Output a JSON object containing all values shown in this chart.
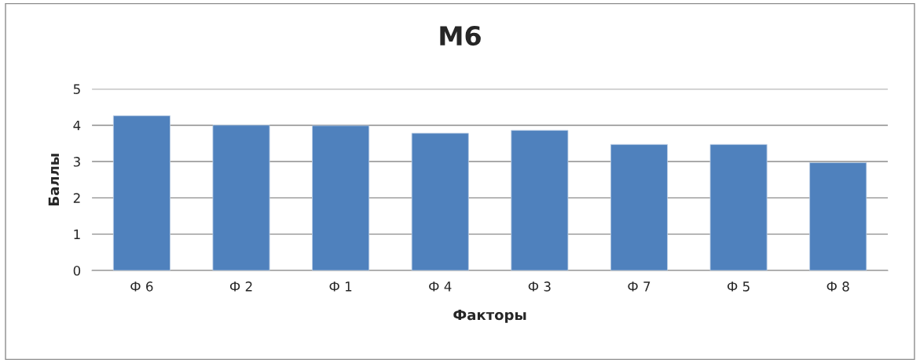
{
  "chart_data": {
    "type": "bar",
    "title": "М6",
    "xlabel": "Факторы",
    "ylabel": "Баллы",
    "categories": [
      "Ф 6",
      "Ф 2",
      "Ф 1",
      "Ф 4",
      "Ф 3",
      "Ф 7",
      "Ф 5",
      "Ф 8"
    ],
    "values": [
      4.26,
      4.0,
      3.99,
      3.78,
      3.86,
      3.47,
      3.47,
      2.97
    ],
    "color": "#4f81bd",
    "ylim": [
      0,
      5
    ],
    "yticks": [
      0,
      1,
      2,
      3,
      4,
      5
    ],
    "grid": "y"
  }
}
